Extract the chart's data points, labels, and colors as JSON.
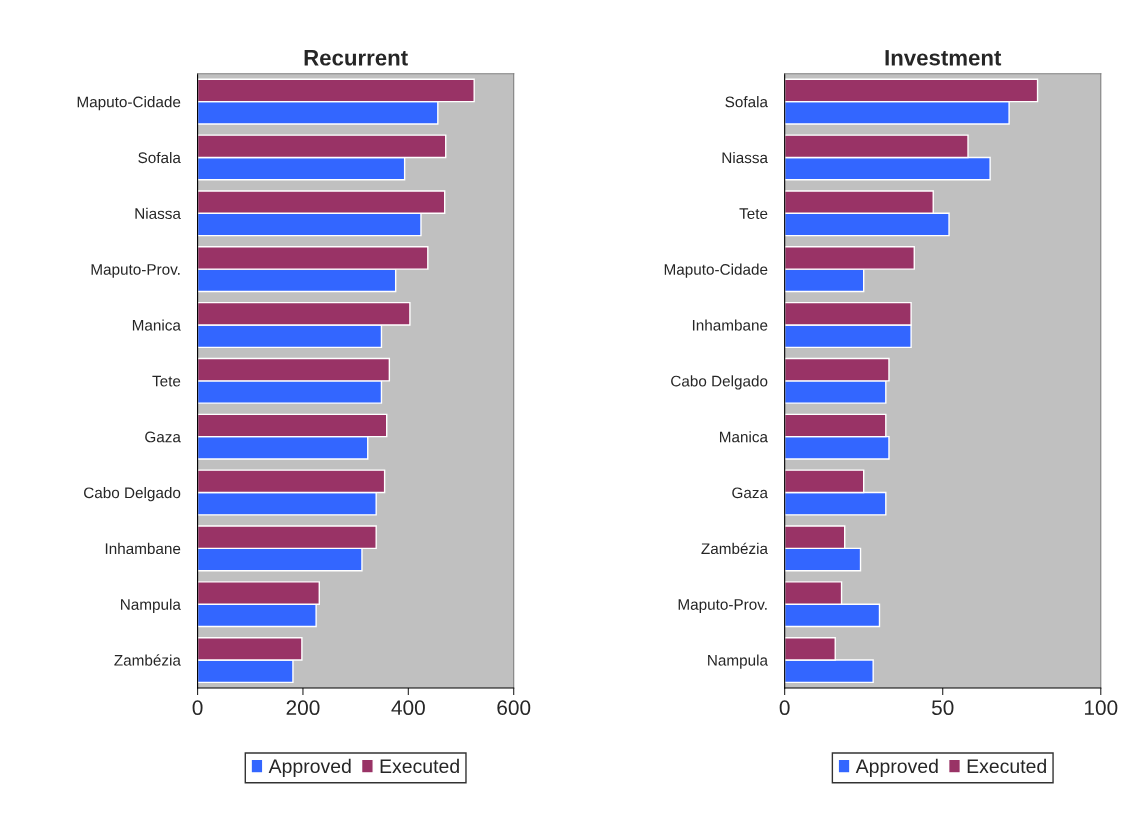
{
  "chart_data": [
    {
      "type": "bar",
      "orientation": "horizontal",
      "title": "Recurrent",
      "categories": [
        "Maputo-Cidade",
        "Sofala",
        "Niassa",
        "Maputo-Prov.",
        "Manica",
        "Tete",
        "Gaza",
        "Cabo Delgado",
        "Inhambane",
        "Nampula",
        "Zambézia"
      ],
      "series": [
        {
          "name": "Approved",
          "color": "#3366ff",
          "values": [
            456,
            393,
            424,
            376,
            349,
            349,
            323,
            339,
            312,
            225,
            181
          ]
        },
        {
          "name": "Executed",
          "color": "#993366",
          "values": [
            525,
            471,
            469,
            437,
            403,
            364,
            359,
            355,
            339,
            231,
            198
          ]
        }
      ],
      "xlim": [
        0,
        600
      ],
      "xticks": [
        0,
        200,
        400,
        600
      ],
      "grid": false,
      "legend": "bottom"
    },
    {
      "type": "bar",
      "orientation": "horizontal",
      "title": "Investment",
      "categories": [
        "Sofala",
        "Niassa",
        "Tete",
        "Maputo-Cidade",
        "Inhambane",
        "Cabo Delgado",
        "Manica",
        "Gaza",
        "Zambézia",
        "Maputo-Prov.",
        "Nampula"
      ],
      "series": [
        {
          "name": "Approved",
          "color": "#3366ff",
          "values": [
            71,
            65,
            52,
            25,
            40,
            32,
            33,
            32,
            24,
            30,
            28
          ]
        },
        {
          "name": "Executed",
          "color": "#993366",
          "values": [
            80,
            58,
            47,
            41,
            40,
            33,
            32,
            25,
            19,
            18,
            16
          ]
        }
      ],
      "xlim": [
        0,
        100
      ],
      "xticks": [
        0,
        50,
        100
      ],
      "grid": false,
      "legend": "bottom"
    }
  ]
}
